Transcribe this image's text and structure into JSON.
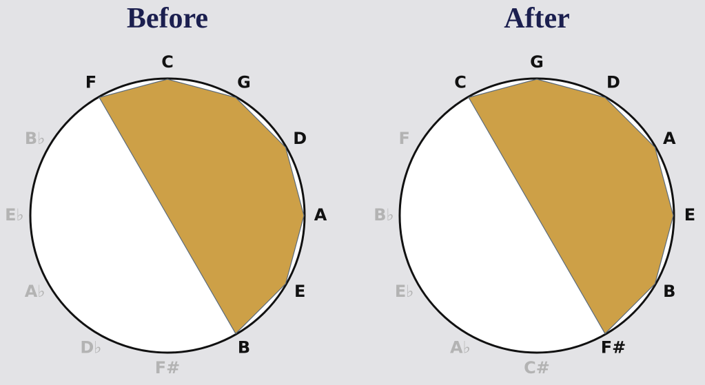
{
  "panels": [
    {
      "title": "Before",
      "notes": [
        {
          "label": "C",
          "active": true
        },
        {
          "label": "G",
          "active": true
        },
        {
          "label": "D",
          "active": true
        },
        {
          "label": "A",
          "active": true
        },
        {
          "label": "E",
          "active": true
        },
        {
          "label": "B",
          "active": true
        },
        {
          "label": "F#",
          "active": false
        },
        {
          "label": "D♭",
          "active": false
        },
        {
          "label": "A♭",
          "active": false
        },
        {
          "label": "E♭",
          "active": false
        },
        {
          "label": "B♭",
          "active": false
        },
        {
          "label": "F",
          "active": true
        }
      ]
    },
    {
      "title": "After",
      "notes": [
        {
          "label": "G",
          "active": true
        },
        {
          "label": "D",
          "active": true
        },
        {
          "label": "A",
          "active": true
        },
        {
          "label": "E",
          "active": true
        },
        {
          "label": "B",
          "active": true
        },
        {
          "label": "F#",
          "active": true
        },
        {
          "label": "C#",
          "active": false
        },
        {
          "label": "A♭",
          "active": false
        },
        {
          "label": "E♭",
          "active": false
        },
        {
          "label": "B♭",
          "active": false
        },
        {
          "label": "F",
          "active": false
        },
        {
          "label": "C",
          "active": true
        }
      ]
    }
  ]
}
